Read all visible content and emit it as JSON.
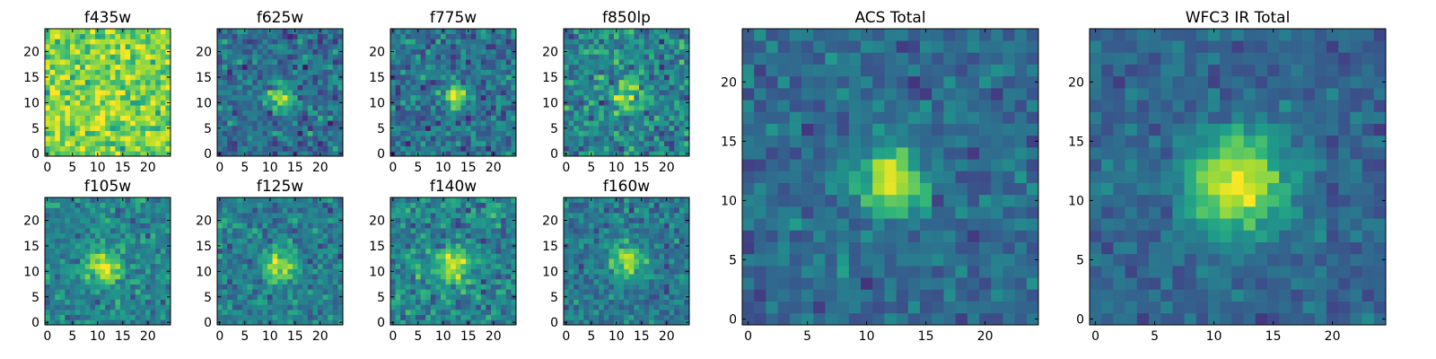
{
  "chart_data": [
    {
      "type": "heatmap",
      "title": "f435w",
      "xticks": [
        0,
        5,
        10,
        15,
        20
      ],
      "yticks": [
        0,
        5,
        10,
        15,
        20
      ],
      "xlim": [
        0,
        25
      ],
      "ylim": [
        0,
        25
      ],
      "grid_size": [
        25,
        25
      ],
      "colormap": "viridis",
      "peak_center": [
        12,
        11
      ],
      "peak_strength": 0.05,
      "peak_sigma": 3,
      "background": 0.8,
      "noise": 0.16,
      "seed": 11
    },
    {
      "type": "heatmap",
      "title": "f625w",
      "xticks": [
        0,
        5,
        10,
        15,
        20
      ],
      "yticks": [
        0,
        5,
        10,
        15,
        20
      ],
      "xlim": [
        0,
        25
      ],
      "ylim": [
        0,
        25
      ],
      "grid_size": [
        25,
        25
      ],
      "colormap": "viridis",
      "peak_center": [
        12,
        11
      ],
      "peak_strength": 0.55,
      "peak_sigma": 1.8,
      "background": 0.36,
      "noise": 0.14,
      "seed": 21
    },
    {
      "type": "heatmap",
      "title": "f775w",
      "xticks": [
        0,
        5,
        10,
        15,
        20
      ],
      "yticks": [
        0,
        5,
        10,
        15,
        20
      ],
      "xlim": [
        0,
        25
      ],
      "ylim": [
        0,
        25
      ],
      "grid_size": [
        25,
        25
      ],
      "colormap": "viridis",
      "peak_center": [
        12.5,
        11.5
      ],
      "peak_strength": 0.58,
      "peak_sigma": 1.6,
      "background": 0.38,
      "noise": 0.14,
      "seed": 31
    },
    {
      "type": "heatmap",
      "title": "f850lp",
      "xticks": [
        0,
        5,
        10,
        15,
        20
      ],
      "yticks": [
        0,
        5,
        10,
        15,
        20
      ],
      "xlim": [
        0,
        25
      ],
      "ylim": [
        0,
        25
      ],
      "grid_size": [
        25,
        25
      ],
      "colormap": "viridis",
      "peak_center": [
        12,
        11.5
      ],
      "peak_strength": 0.45,
      "peak_sigma": 1.8,
      "background": 0.45,
      "noise": 0.16,
      "seed": 41
    },
    {
      "type": "heatmap",
      "title": "f105w",
      "xticks": [
        0,
        5,
        10,
        15,
        20
      ],
      "yticks": [
        0,
        5,
        10,
        15,
        20
      ],
      "xlim": [
        0,
        25
      ],
      "ylim": [
        0,
        25
      ],
      "grid_size": [
        25,
        25
      ],
      "colormap": "viridis",
      "peak_center": [
        11.5,
        11
      ],
      "peak_strength": 0.5,
      "peak_sigma": 2.3,
      "background": 0.45,
      "noise": 0.12,
      "seed": 51
    },
    {
      "type": "heatmap",
      "title": "f125w",
      "xticks": [
        0,
        5,
        10,
        15,
        20
      ],
      "yticks": [
        0,
        5,
        10,
        15,
        20
      ],
      "xlim": [
        0,
        25
      ],
      "ylim": [
        0,
        25
      ],
      "grid_size": [
        25,
        25
      ],
      "colormap": "viridis",
      "peak_center": [
        12,
        11
      ],
      "peak_strength": 0.5,
      "peak_sigma": 2.2,
      "background": 0.42,
      "noise": 0.12,
      "seed": 61
    },
    {
      "type": "heatmap",
      "title": "f140w",
      "xticks": [
        0,
        5,
        10,
        15,
        20
      ],
      "yticks": [
        0,
        5,
        10,
        15,
        20
      ],
      "xlim": [
        0,
        25
      ],
      "ylim": [
        0,
        25
      ],
      "grid_size": [
        25,
        25
      ],
      "colormap": "viridis",
      "peak_center": [
        12,
        11
      ],
      "peak_strength": 0.45,
      "peak_sigma": 2.4,
      "background": 0.45,
      "noise": 0.14,
      "seed": 71
    },
    {
      "type": "heatmap",
      "title": "f160w",
      "xticks": [
        0,
        5,
        10,
        15,
        20
      ],
      "yticks": [
        0,
        5,
        10,
        15,
        20
      ],
      "xlim": [
        0,
        25
      ],
      "ylim": [
        0,
        25
      ],
      "grid_size": [
        25,
        25
      ],
      "colormap": "viridis",
      "peak_center": [
        12.5,
        12
      ],
      "peak_strength": 0.52,
      "peak_sigma": 2.2,
      "background": 0.4,
      "noise": 0.12,
      "seed": 81
    },
    {
      "type": "heatmap",
      "title": "ACS Total",
      "xticks": [
        0,
        5,
        10,
        15,
        20
      ],
      "yticks": [
        0,
        5,
        10,
        15,
        20
      ],
      "xlim": [
        0,
        25
      ],
      "ylim": [
        0,
        25
      ],
      "grid_size": [
        25,
        25
      ],
      "colormap": "viridis",
      "peak_center": [
        12,
        11.5
      ],
      "peak_strength": 0.6,
      "peak_sigma": 2.0,
      "background": 0.35,
      "noise": 0.1,
      "seed": 91
    },
    {
      "type": "heatmap",
      "title": "WFC3 IR Total",
      "xticks": [
        0,
        5,
        10,
        15,
        20
      ],
      "yticks": [
        0,
        5,
        10,
        15,
        20
      ],
      "xlim": [
        0,
        25
      ],
      "ylim": [
        0,
        25
      ],
      "grid_size": [
        25,
        25
      ],
      "colormap": "viridis",
      "peak_center": [
        12,
        11.5
      ],
      "peak_strength": 0.65,
      "peak_sigma": 3.0,
      "background": 0.33,
      "noise": 0.08,
      "seed": 101
    }
  ]
}
